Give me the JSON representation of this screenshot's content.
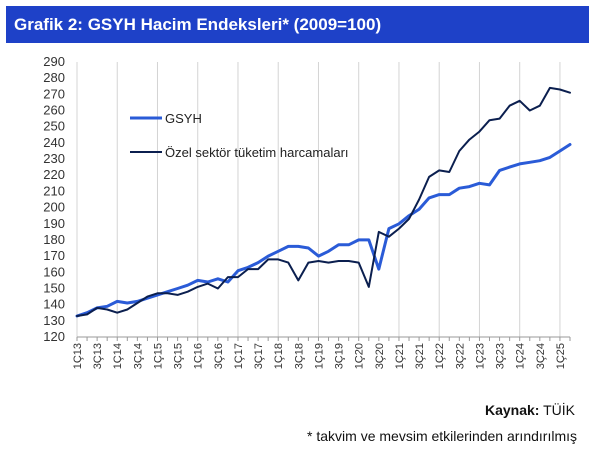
{
  "title": "Grafik 2: GSYH Hacim Endeksleri* (2009=100)",
  "source_label": "Kaynak:",
  "source_value": "TÜİK",
  "footnote": "* takvim ve mevsim etkilerinden arındırılmış",
  "chart_data": {
    "type": "line",
    "ylim": [
      120,
      290
    ],
    "ystep": 10,
    "grid": "vertical-yearly",
    "legend_position": "top-left",
    "x_tick_labels": [
      "1Ç13",
      "3Ç13",
      "1Ç14",
      "3Ç14",
      "1Ç15",
      "3Ç15",
      "1Ç16",
      "3Ç16",
      "1Ç17",
      "3Ç17",
      "1Ç18",
      "3Ç18",
      "1Ç19",
      "3Ç19",
      "1Ç20",
      "3Ç20",
      "1Ç21",
      "3Ç21",
      "1Ç22",
      "3Ç22",
      "1Ç23",
      "3Ç23",
      "1Ç24",
      "3Ç24",
      "1Ç25"
    ],
    "x": [
      "1Ç13",
      "2Ç13",
      "3Ç13",
      "4Ç13",
      "1Ç14",
      "2Ç14",
      "3Ç14",
      "4Ç14",
      "1Ç15",
      "2Ç15",
      "3Ç15",
      "4Ç15",
      "1Ç16",
      "2Ç16",
      "3Ç16",
      "4Ç16",
      "1Ç17",
      "2Ç17",
      "3Ç17",
      "4Ç17",
      "1Ç18",
      "2Ç18",
      "3Ç18",
      "4Ç18",
      "1Ç19",
      "2Ç19",
      "3Ç19",
      "4Ç19",
      "1Ç20",
      "2Ç20",
      "3Ç20",
      "4Ç20",
      "1Ç21",
      "2Ç21",
      "3Ç21",
      "4Ç21",
      "1Ç22",
      "2Ç22",
      "3Ç22",
      "4Ç22",
      "1Ç23",
      "2Ç23",
      "3Ç23",
      "4Ç23",
      "1Ç24",
      "2Ç24",
      "3Ç24",
      "4Ç24",
      "1Ç25",
      "2Ç25"
    ],
    "series": [
      {
        "name": "GSYH",
        "color": "#2a5bd7",
        "width": 3,
        "values": [
          133,
          135,
          138,
          139,
          142,
          141,
          142,
          144,
          146,
          148,
          150,
          152,
          155,
          154,
          156,
          154,
          161,
          163,
          166,
          170,
          173,
          176,
          176,
          175,
          170,
          173,
          177,
          177,
          180,
          180,
          162,
          187,
          190,
          195,
          199,
          206,
          208,
          208,
          212,
          213,
          215,
          214,
          223,
          225,
          227,
          228,
          229,
          231,
          235,
          239
        ]
      },
      {
        "name": "Özel sektör tüketim harcamaları",
        "color": "#0b1f4f",
        "width": 2,
        "values": [
          133,
          134,
          138,
          137,
          135,
          137,
          141,
          145,
          147,
          147,
          146,
          148,
          151,
          153,
          150,
          157,
          157,
          162,
          162,
          168,
          168,
          166,
          155,
          166,
          167,
          166,
          167,
          167,
          166,
          151,
          185,
          182,
          187,
          193,
          205,
          219,
          223,
          222,
          235,
          242,
          247,
          254,
          255,
          263,
          266,
          260,
          263,
          274,
          273,
          271
        ]
      }
    ]
  }
}
